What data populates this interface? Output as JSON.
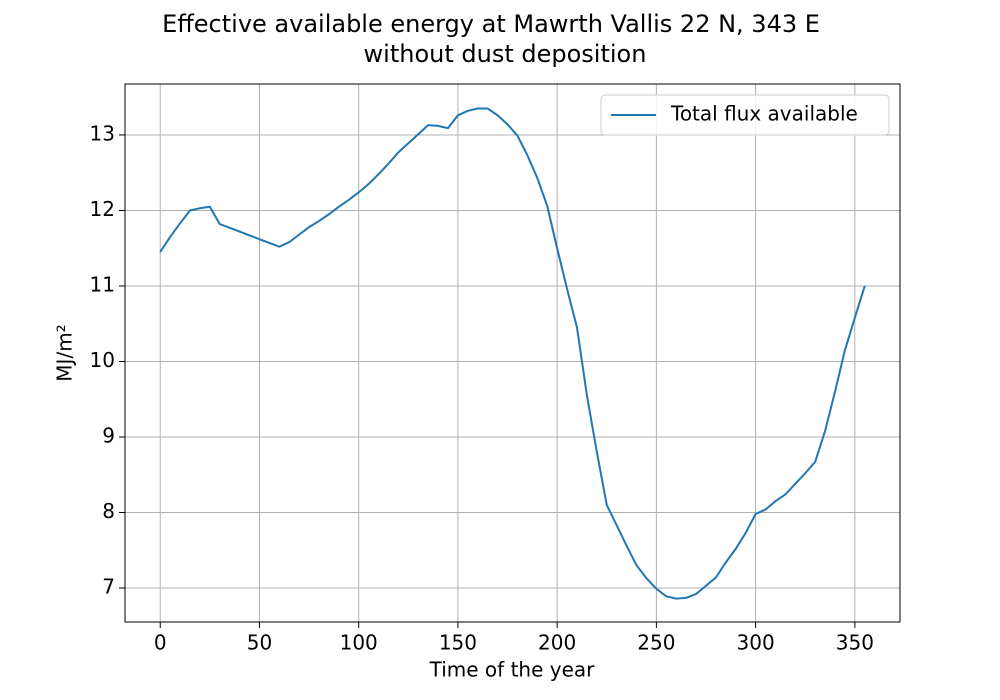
{
  "chart_data": {
    "type": "line",
    "title": "Effective available energy at Mawrth Vallis 22 N, 343 E",
    "subtitle": "without dust deposition",
    "xlabel": "Time of the year",
    "ylabel": "MJ/m²",
    "x": [
      0,
      5,
      10,
      15,
      20,
      25,
      30,
      35,
      40,
      45,
      50,
      55,
      60,
      65,
      70,
      75,
      80,
      85,
      90,
      95,
      100,
      105,
      110,
      115,
      120,
      125,
      130,
      135,
      140,
      145,
      150,
      155,
      160,
      165,
      170,
      175,
      180,
      185,
      190,
      195,
      200,
      205,
      210,
      215,
      220,
      225,
      230,
      235,
      240,
      245,
      250,
      255,
      260,
      265,
      270,
      275,
      280,
      285,
      290,
      295,
      300,
      305,
      310,
      315,
      320,
      325,
      330,
      335,
      340,
      345,
      350,
      355
    ],
    "series": [
      {
        "name": "Total flux available",
        "color": "#1f77b4",
        "values": [
          11.45,
          11.65,
          11.83,
          12.0,
          12.03,
          12.05,
          11.82,
          11.77,
          11.72,
          11.67,
          11.62,
          11.57,
          11.52,
          11.58,
          11.68,
          11.78,
          11.86,
          11.95,
          12.05,
          12.14,
          12.24,
          12.35,
          12.48,
          12.62,
          12.77,
          12.89,
          13.01,
          13.13,
          13.12,
          13.09,
          13.26,
          13.32,
          13.35,
          13.35,
          13.26,
          13.14,
          12.99,
          12.73,
          12.43,
          12.06,
          11.5,
          10.96,
          10.45,
          9.55,
          8.8,
          8.1,
          7.83,
          7.56,
          7.3,
          7.13,
          6.99,
          6.89,
          6.86,
          6.87,
          6.92,
          7.03,
          7.14,
          7.34,
          7.52,
          7.73,
          7.98,
          8.04,
          8.15,
          8.24,
          8.38,
          8.52,
          8.67,
          9.08,
          9.6,
          10.15,
          10.58,
          11.0
        ]
      }
    ],
    "xlim": [
      -17.75,
      372.75
    ],
    "xticks": [
      0,
      50,
      100,
      150,
      200,
      250,
      300,
      350
    ],
    "ylim": [
      6.55,
      13.675
    ],
    "yticks": [
      7,
      8,
      9,
      10,
      11,
      12,
      13
    ],
    "grid": true,
    "legend": "upper right"
  }
}
